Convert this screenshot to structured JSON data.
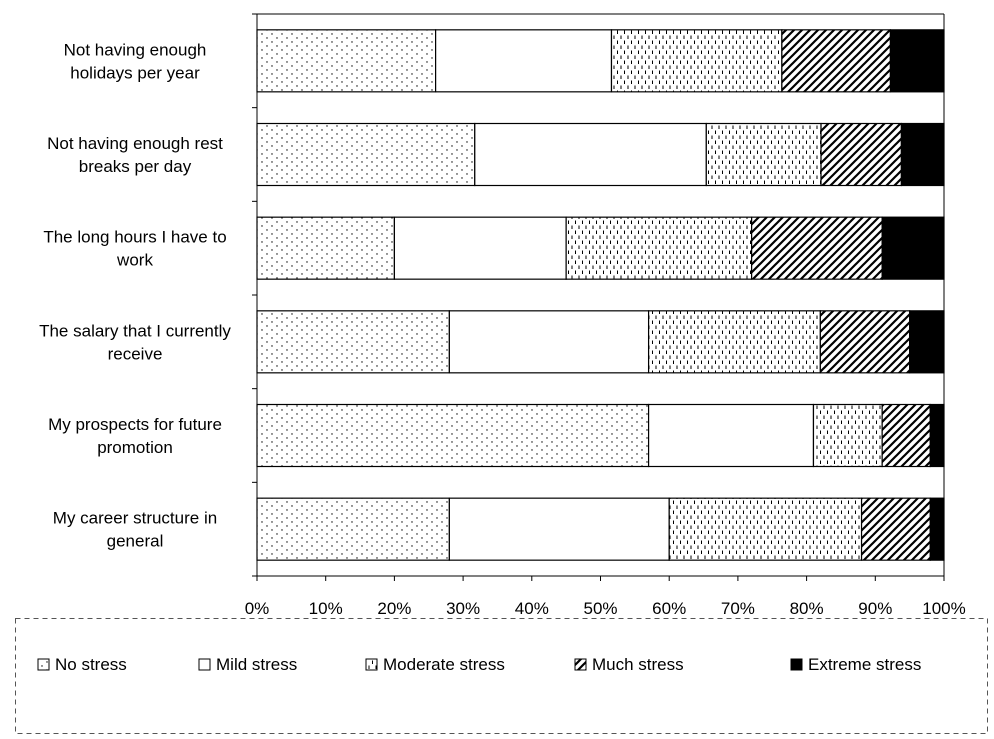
{
  "chart_data": {
    "type": "bar",
    "orientation": "horizontal",
    "stacked": "percent",
    "title": "",
    "xlabel": "",
    "ylabel": "",
    "xlim": [
      0,
      100
    ],
    "x_ticks": [
      "0%",
      "10%",
      "20%",
      "30%",
      "40%",
      "50%",
      "60%",
      "70%",
      "80%",
      "90%",
      "100%"
    ],
    "grid": false,
    "legend_position": "bottom",
    "categories": [
      "Not having enough holidays per year",
      "Not having enough rest breaks per day",
      "The long hours I have to work",
      "The salary that I currently receive",
      "My prospects for future promotion",
      "My career structure in general"
    ],
    "category_label_lines": [
      [
        "Not having enough",
        "holidays per year"
      ],
      [
        "Not having enough rest",
        "breaks per day"
      ],
      [
        "The long hours I have to",
        "work"
      ],
      [
        "The salary that I currently",
        "receive"
      ],
      [
        "My prospects for future",
        "promotion"
      ],
      [
        "My career structure in",
        "general"
      ]
    ],
    "series": [
      {
        "name": "No stress",
        "pattern": "dots",
        "values": [
          26,
          31.7,
          20,
          28,
          57,
          28
        ]
      },
      {
        "name": "Mild stress",
        "pattern": "blank",
        "values": [
          25.6,
          33.7,
          25,
          29,
          24,
          32
        ]
      },
      {
        "name": "Moderate stress",
        "pattern": "dashes",
        "values": [
          24.8,
          16.7,
          27,
          25,
          10,
          28
        ]
      },
      {
        "name": "Much stress",
        "pattern": "diagonal",
        "values": [
          15.8,
          11.7,
          19,
          13,
          7,
          10
        ]
      },
      {
        "name": "Extreme stress",
        "pattern": "solid",
        "values": [
          7.8,
          6.2,
          9,
          5,
          2,
          2
        ]
      }
    ],
    "colors": {
      "fill": "#ffffff",
      "ink": "#000000",
      "legend_border": "#555555"
    }
  }
}
